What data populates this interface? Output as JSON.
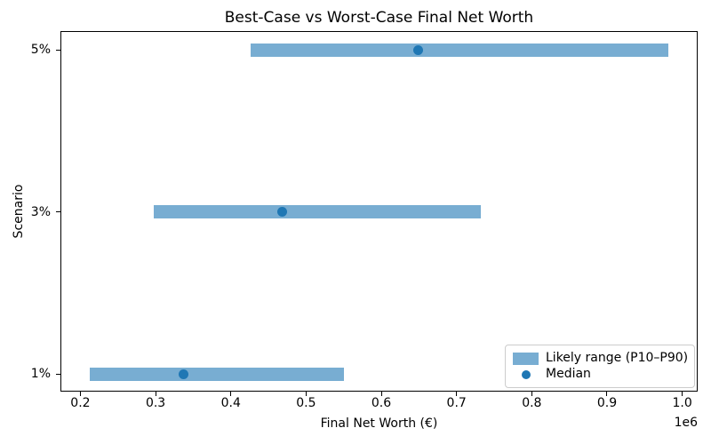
{
  "chart_data": {
    "type": "bar",
    "orientation": "horizontal",
    "title": "Best-Case vs Worst-Case Final Net Worth",
    "xlabel": "Final Net Worth (€)",
    "ylabel": "Scenario",
    "x_scale_offset_label": "1e6",
    "grid": false,
    "legend_position": "lower right",
    "categories": [
      "5%",
      "3%",
      "1%"
    ],
    "rows": [
      {
        "scenario": "5%",
        "p10": 426000,
        "median": 649000,
        "p90": 982000
      },
      {
        "scenario": "3%",
        "p10": 298000,
        "median": 468000,
        "p90": 732000
      },
      {
        "scenario": "1%",
        "p10": 212000,
        "median": 337000,
        "p90": 550000
      }
    ],
    "legend": [
      {
        "label": "Likely range (P10–P90)",
        "marker": "range-bar-swatch"
      },
      {
        "label": "Median",
        "marker": "median-dot"
      }
    ],
    "xlim": [
      173500,
      1020500
    ],
    "x_ticks": [
      200000,
      300000,
      400000,
      500000,
      600000,
      700000,
      800000,
      900000,
      1000000
    ],
    "x_tick_labels": [
      "0.2",
      "0.3",
      "0.4",
      "0.5",
      "0.6",
      "0.7",
      "0.8",
      "0.9",
      "1.0"
    ],
    "colors": {
      "range_bar": "#78add2",
      "median_dot": "#1f77b4",
      "spine": "#000000",
      "legend_border": "#cccccc"
    }
  }
}
